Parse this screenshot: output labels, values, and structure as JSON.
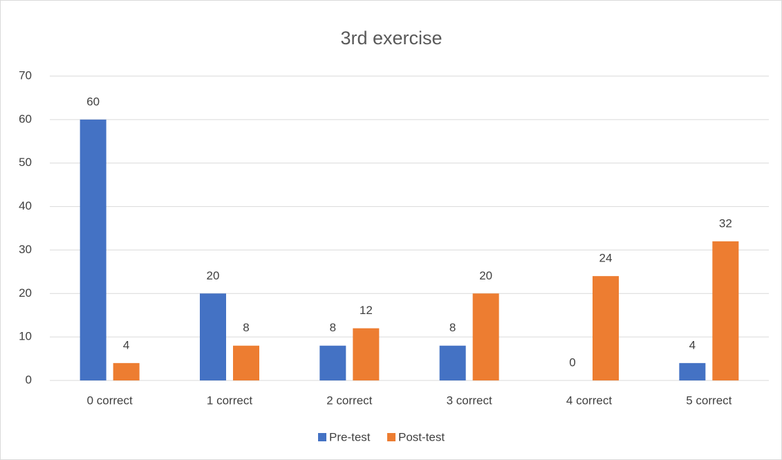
{
  "chart_data": {
    "type": "bar",
    "title": "3rd exercise",
    "categories": [
      "0 correct",
      "1 correct",
      "2 correct",
      "3 correct",
      "4 correct",
      "5 correct"
    ],
    "series": [
      {
        "name": "Pre-test",
        "color": "#4472c4",
        "values": [
          60,
          20,
          8,
          8,
          0,
          4
        ]
      },
      {
        "name": "Post-test",
        "color": "#ed7d31",
        "values": [
          4,
          8,
          12,
          20,
          24,
          32
        ]
      }
    ],
    "ylim": [
      0,
      70
    ],
    "yticks": [
      0,
      10,
      20,
      30,
      40,
      50,
      60,
      70
    ],
    "grid": true,
    "legend": "bottom"
  }
}
